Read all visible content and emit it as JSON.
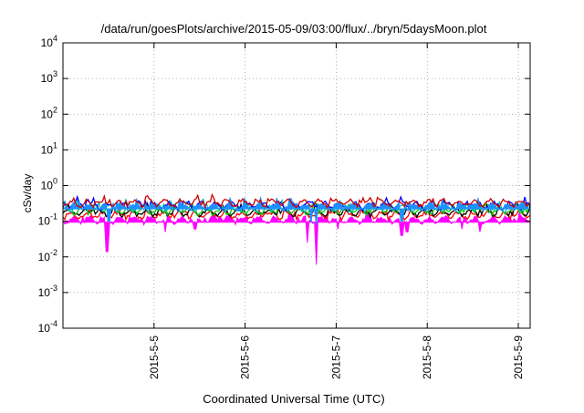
{
  "chart_data": {
    "type": "area",
    "title": "/data/run/goesPlots/archive/2015-05-09/03:00/flux/../bryn/5daysMoon.plot",
    "xlabel": "Coordinated Universal Time (UTC)",
    "ylabel": "cSv/day",
    "yscale": "log",
    "ylim": [
      0.0001,
      10000
    ],
    "xlim": [
      4.0,
      9.13
    ],
    "y_ticks": [
      {
        "value": 0.0001,
        "base": "10",
        "exp": "-4"
      },
      {
        "value": 0.001,
        "base": "10",
        "exp": "-3"
      },
      {
        "value": 0.01,
        "base": "10",
        "exp": "-2"
      },
      {
        "value": 0.1,
        "base": "10",
        "exp": "-1"
      },
      {
        "value": 1,
        "base": "10",
        "exp": "0"
      },
      {
        "value": 10,
        "base": "10",
        "exp": "1"
      },
      {
        "value": 100,
        "base": "10",
        "exp": "2"
      },
      {
        "value": 1000,
        "base": "10",
        "exp": "3"
      },
      {
        "value": 10000,
        "base": "10",
        "exp": "4"
      }
    ],
    "x_ticks": [
      {
        "value": 5,
        "label": "2015-5-5"
      },
      {
        "value": 6,
        "label": "2015-5-6"
      },
      {
        "value": 7,
        "label": "2015-5-7"
      },
      {
        "value": 8,
        "label": "2015-5-8"
      },
      {
        "value": 9,
        "label": "2015-5-9"
      }
    ],
    "grid": true,
    "series": [
      {
        "color": "#ff00ff",
        "kind": "fill",
        "base": 0.11,
        "dips": [
          [
            4.48,
            0.014
          ],
          [
            5.12,
            0.05
          ],
          [
            5.45,
            0.06
          ],
          [
            6.68,
            0.025
          ],
          [
            6.78,
            0.006
          ],
          [
            7.02,
            0.06
          ],
          [
            7.72,
            0.04
          ],
          [
            7.78,
            0.05
          ],
          [
            8.38,
            0.06
          ],
          [
            8.58,
            0.05
          ]
        ]
      },
      {
        "color": "#ff0000",
        "kind": "line",
        "base": 0.15,
        "dips": []
      },
      {
        "color": "#000000",
        "kind": "line",
        "base": 0.18,
        "dips": []
      },
      {
        "color": "#00cc00",
        "kind": "line",
        "base": 0.2,
        "dips": []
      },
      {
        "color": "#00bfbf",
        "kind": "line",
        "base": 0.24,
        "dips": []
      },
      {
        "color": "#0000ff",
        "kind": "line",
        "base": 0.28,
        "dips": []
      },
      {
        "color": "#1e90ff",
        "kind": "fill",
        "base": 0.26,
        "dips": [
          [
            4.5,
            0.1
          ],
          [
            6.72,
            0.09
          ],
          [
            6.78,
            0.08
          ],
          [
            7.72,
            0.1
          ]
        ]
      },
      {
        "color": "#cc0000",
        "kind": "line",
        "base": 0.33,
        "dips": []
      }
    ]
  }
}
